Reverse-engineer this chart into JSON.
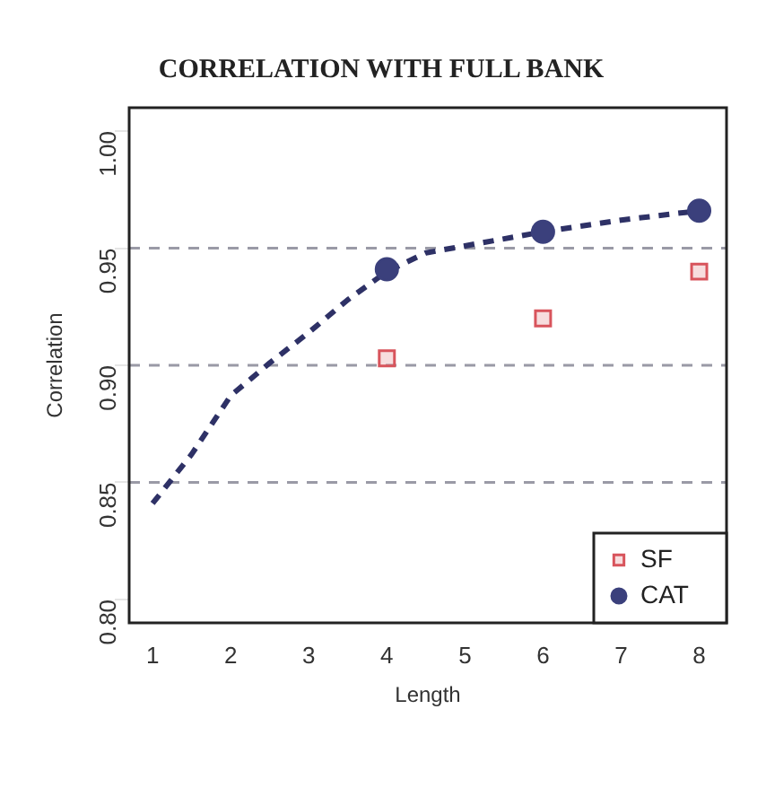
{
  "chart_data": {
    "type": "scatter",
    "title": "CORRELATION WITH FULL BANK",
    "xlabel": "Length",
    "ylabel": "Correlation",
    "xlim": [
      0.7,
      8.35
    ],
    "xticks": [
      1,
      2,
      3,
      4,
      5,
      6,
      7,
      8
    ],
    "ylim": [
      0.79,
      1.01
    ],
    "yticks": [
      {
        "value": 0.8,
        "label": "0.80"
      },
      {
        "value": 0.85,
        "label": "0.85"
      },
      {
        "value": 0.9,
        "label": "0.90"
      },
      {
        "value": 0.95,
        "label": "0.95"
      },
      {
        "value": 1,
        "label": "1.00"
      }
    ],
    "grid": false,
    "legend": "bottom right",
    "ref_lines": [
      {
        "axis": "y",
        "value": 0.85,
        "color": "#9a9aa6",
        "line_style": "dashed"
      },
      {
        "axis": "y",
        "value": 0.9,
        "color": "#9a9aa6",
        "line_style": "dashed"
      },
      {
        "axis": "y",
        "value": 0.95,
        "color": "#9a9aa6",
        "line_style": "dashed"
      }
    ],
    "series": [
      {
        "name": "SF",
        "marker": "square",
        "color": "#d8545c",
        "x": [
          4,
          6,
          8
        ],
        "values": [
          0.903,
          0.92,
          0.94
        ]
      },
      {
        "name": "CAT",
        "marker": "circle",
        "color": "#3b407c",
        "x": [
          4,
          6,
          8
        ],
        "values": [
          0.941,
          0.957,
          0.966
        ]
      },
      {
        "type": "line",
        "line_style": "dashed",
        "marker": "none",
        "color": "#2e3166",
        "x": [
          1,
          1.5,
          2,
          2.5,
          3,
          3.5,
          4,
          4.5,
          5,
          5.5,
          6,
          7,
          8
        ],
        "values": [
          0.841,
          0.862,
          0.887,
          0.901,
          0.914,
          0.928,
          0.94,
          0.948,
          0.951,
          0.954,
          0.957,
          0.962,
          0.966
        ]
      }
    ]
  }
}
